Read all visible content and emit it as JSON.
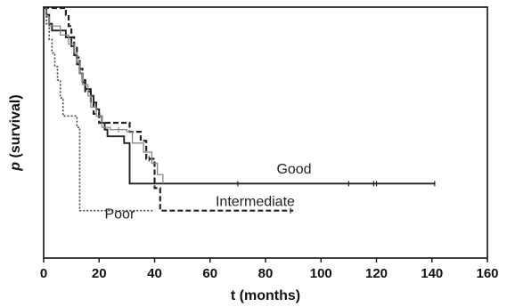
{
  "chart_data": {
    "type": "line",
    "chart_kind": "kaplan-meier",
    "title": "",
    "xlabel": "t (months)",
    "ylabel_prefix": "p",
    "ylabel_suffix": " (survival)",
    "xlim": [
      0,
      160
    ],
    "ylim": [
      0,
      1
    ],
    "x_ticks": [
      0,
      20,
      40,
      60,
      80,
      100,
      120,
      140,
      160
    ],
    "grid": false,
    "legend": "none",
    "y_tick_labels": false,
    "series": [
      {
        "label": "Good",
        "style": "solid",
        "color": "#222222",
        "width": 1.9,
        "steps": [
          [
            0,
            1.0
          ],
          [
            1,
            0.97
          ],
          [
            2,
            0.93
          ],
          [
            3,
            0.9
          ],
          [
            8,
            0.87
          ],
          [
            10,
            0.83
          ],
          [
            11,
            0.79
          ],
          [
            12,
            0.75
          ],
          [
            13,
            0.71
          ],
          [
            14,
            0.67
          ],
          [
            15,
            0.64
          ],
          [
            17,
            0.61
          ],
          [
            18,
            0.58
          ],
          [
            19,
            0.55
          ],
          [
            20,
            0.52
          ],
          [
            21,
            0.49
          ],
          [
            22,
            0.46
          ],
          [
            23,
            0.43
          ],
          [
            29,
            0.4
          ],
          [
            31,
            0.22
          ]
        ],
        "end": 141,
        "censor": [
          70,
          110,
          119,
          120,
          141
        ]
      },
      {
        "label": "Intermediate",
        "style": "dashed",
        "color": "#222222",
        "width": 2.2,
        "steps": [
          [
            0,
            1.0
          ],
          [
            8,
            0.97
          ],
          [
            9,
            0.92
          ],
          [
            10,
            0.87
          ],
          [
            11,
            0.83
          ],
          [
            12,
            0.78
          ],
          [
            13,
            0.73
          ],
          [
            14,
            0.68
          ],
          [
            15,
            0.63
          ],
          [
            17,
            0.58
          ],
          [
            18,
            0.53
          ],
          [
            20,
            0.49
          ],
          [
            31,
            0.45
          ],
          [
            35,
            0.41
          ],
          [
            37,
            0.33
          ],
          [
            40,
            0.2
          ],
          [
            42,
            0.1
          ]
        ],
        "end": 90,
        "censor": [
          38,
          89
        ]
      },
      {
        "label": "",
        "style": "solid",
        "color": "#888888",
        "width": 1.3,
        "steps": [
          [
            0,
            1.0
          ],
          [
            1,
            0.96
          ],
          [
            2,
            0.92
          ],
          [
            6,
            0.88
          ],
          [
            9,
            0.84
          ],
          [
            11,
            0.8
          ],
          [
            12,
            0.76
          ],
          [
            13,
            0.71
          ],
          [
            14,
            0.66
          ],
          [
            16,
            0.61
          ],
          [
            17,
            0.56
          ],
          [
            19,
            0.52
          ],
          [
            21,
            0.47
          ],
          [
            24,
            0.46
          ],
          [
            30,
            0.45
          ],
          [
            32,
            0.4
          ],
          [
            36,
            0.36
          ],
          [
            39,
            0.31
          ],
          [
            41,
            0.26
          ],
          [
            43,
            0.22
          ]
        ],
        "end": 43,
        "censor": [
          27
        ]
      },
      {
        "label": "Poor",
        "style": "dotted",
        "color": "#444444",
        "width": 1.6,
        "steps": [
          [
            0,
            1.0
          ],
          [
            1,
            0.93
          ],
          [
            2,
            0.86
          ],
          [
            3,
            0.8
          ],
          [
            4,
            0.74
          ],
          [
            5,
            0.68
          ],
          [
            6,
            0.6
          ],
          [
            7,
            0.52
          ],
          [
            12,
            0.47
          ],
          [
            13,
            0.1
          ]
        ],
        "end": 40,
        "censor": []
      }
    ],
    "annotations": [
      {
        "text": "Good",
        "x": 84,
        "y": 0.265
      },
      {
        "text": "Intermediate",
        "x": 62,
        "y": 0.12
      },
      {
        "text": "Poor",
        "x": 22,
        "y": 0.065
      }
    ]
  }
}
